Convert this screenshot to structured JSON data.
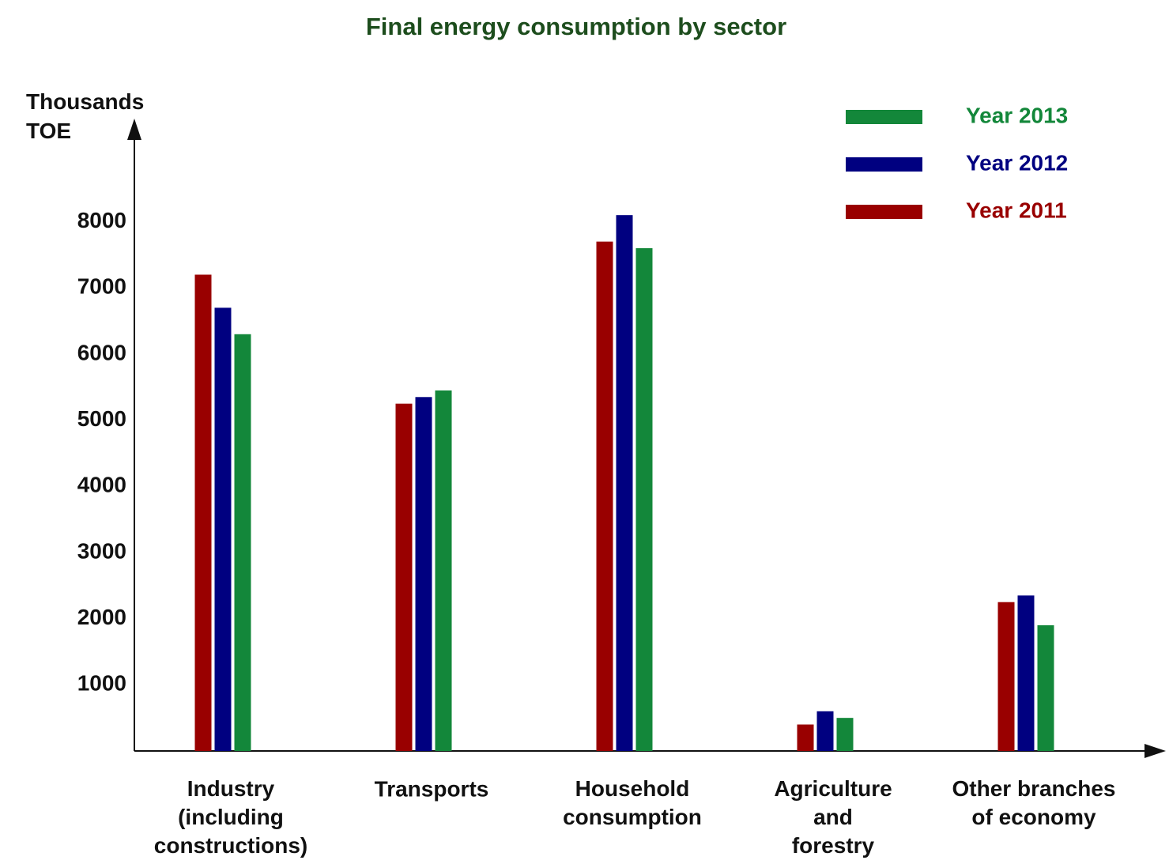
{
  "chart_data": {
    "type": "bar",
    "title": "Final energy consumption by sector",
    "y_label": "Thousands\nTOE",
    "categories": [
      "Industry\n(including\nconstructions)",
      "Transports",
      "Household\nconsumption",
      "Agriculture\nand\nforestry",
      "Other branches\nof economy"
    ],
    "series": [
      {
        "name": "Year 2011",
        "color": "#990000",
        "values": [
          7200,
          5250,
          7700,
          400,
          2250
        ]
      },
      {
        "name": "Year 2012",
        "color": "#000080",
        "values": [
          6700,
          5350,
          8100,
          600,
          2350
        ]
      },
      {
        "name": "Year 2013",
        "color": "#13873a",
        "values": [
          6300,
          5450,
          7600,
          500,
          1900
        ]
      }
    ],
    "ylim": [
      0,
      9500
    ],
    "yticks": [
      1000,
      2000,
      3000,
      4000,
      5000,
      6000,
      7000,
      8000
    ],
    "grid": false,
    "legend": "upper right"
  }
}
